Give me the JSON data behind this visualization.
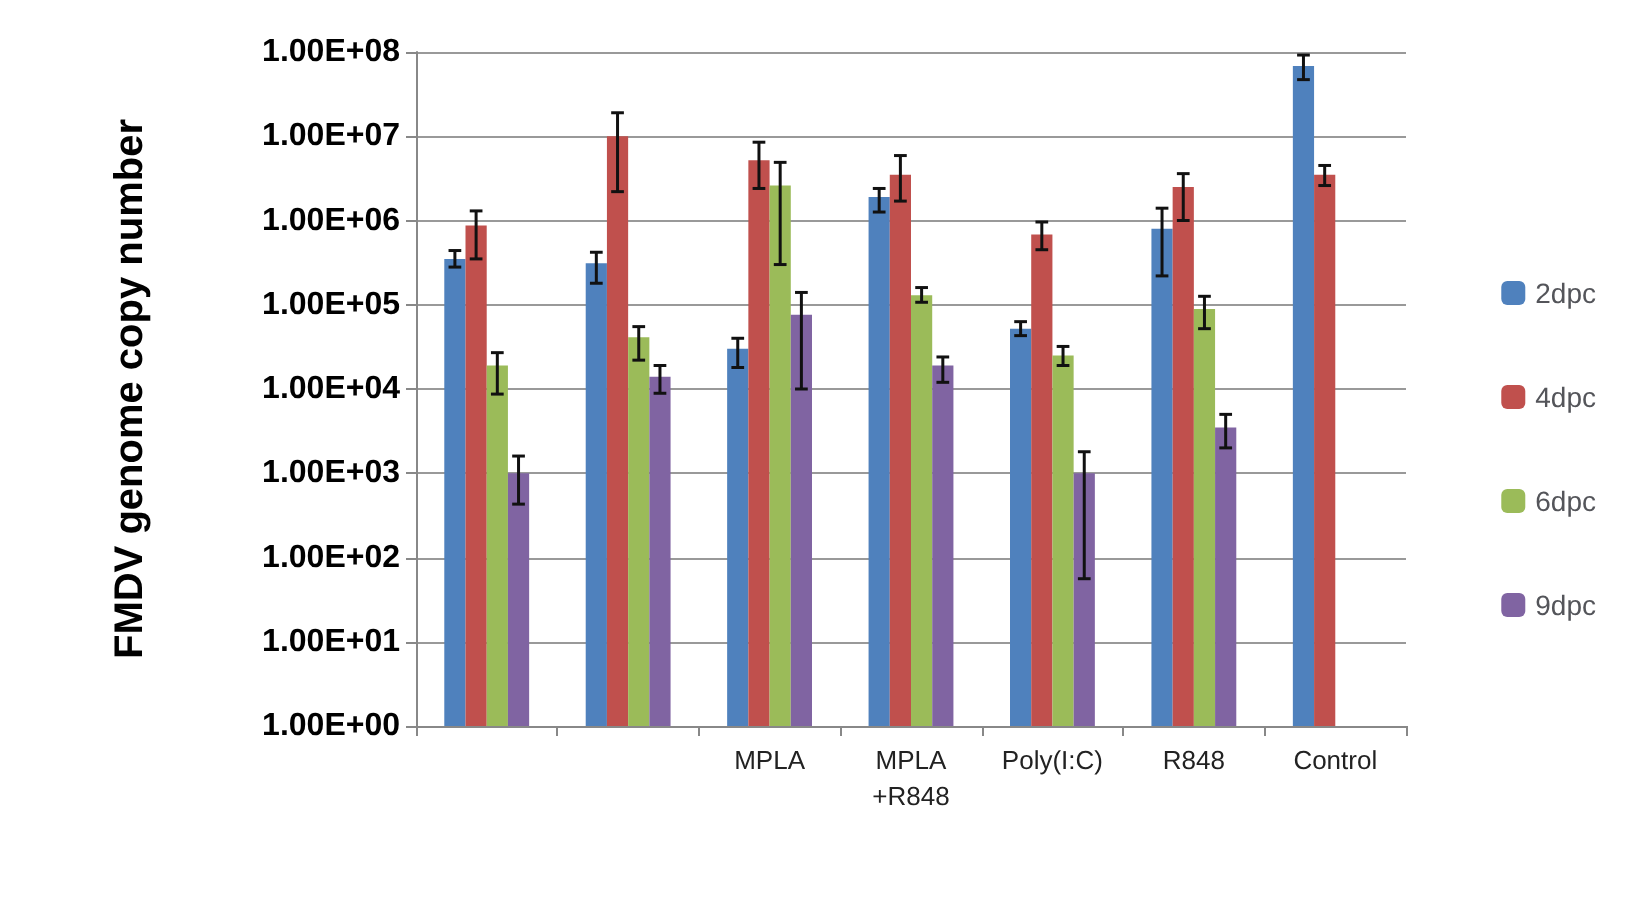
{
  "chart_data": {
    "type": "bar",
    "ylabel": "FMDV genome copy number",
    "categories": [
      null,
      null,
      "MPLA",
      "MPLA\n+R848",
      "Poly(I:C)",
      "R848",
      "Control"
    ],
    "log": true,
    "ylim": [
      1,
      100000000
    ],
    "yticks": [
      {
        "value": 1,
        "label": "1.00E+00"
      },
      {
        "value": 10,
        "label": "1.00E+01"
      },
      {
        "value": 100,
        "label": "1.00E+02"
      },
      {
        "value": 1000,
        "label": "1.00E+03"
      },
      {
        "value": 10000,
        "label": "1.00E+04"
      },
      {
        "value": 100000,
        "label": "1.00E+05"
      },
      {
        "value": 1000000,
        "label": "1.00E+06"
      },
      {
        "value": 10000000,
        "label": "1.00E+07"
      },
      {
        "value": 100000000,
        "label": "1.00E+08"
      }
    ],
    "grid": "y",
    "legend": "right",
    "series": [
      {
        "name": "2dpc",
        "color": "#4f81bd",
        "values": [
          350000,
          310000,
          30000,
          1900000,
          52000,
          800000,
          68000000
        ],
        "errors": [
          [
            280000,
            440000
          ],
          [
            180000,
            420000
          ],
          [
            18000,
            40000
          ],
          [
            1260000,
            2400000
          ],
          [
            43000,
            63000
          ],
          [
            220000,
            1400000
          ],
          [
            47000000,
            92000000
          ]
        ]
      },
      {
        "name": "4dpc",
        "color": "#c0504d",
        "values": [
          870000,
          10000000,
          5200000,
          3500000,
          680000,
          2500000,
          3500000
        ],
        "errors": [
          [
            350000,
            1300000
          ],
          [
            2200000,
            19000000
          ],
          [
            2400000,
            8500000
          ],
          [
            1700000,
            5900000
          ],
          [
            450000,
            960000
          ],
          [
            1000000,
            3600000
          ],
          [
            2600000,
            4500000
          ]
        ]
      },
      {
        "name": "6dpc",
        "color": "#9bbb59",
        "values": [
          19000,
          41000,
          2600000,
          130000,
          25000,
          89000,
          null
        ],
        "errors": [
          [
            8700,
            27000
          ],
          [
            22000,
            55000
          ],
          [
            300000,
            4900000
          ],
          [
            107000,
            160000
          ],
          [
            19000,
            32000
          ],
          [
            52000,
            126000
          ],
          null
        ]
      },
      {
        "name": "9dpc",
        "color": "#8064a2",
        "values": [
          1000,
          14000,
          76000,
          19000,
          1000,
          3500,
          null
        ],
        "errors": [
          [
            430,
            1600
          ],
          [
            8900,
            19000
          ],
          [
            10000,
            140000
          ],
          [
            12000,
            24000
          ],
          [
            56,
            1800
          ],
          [
            2000,
            5000
          ],
          null
        ]
      }
    ]
  }
}
